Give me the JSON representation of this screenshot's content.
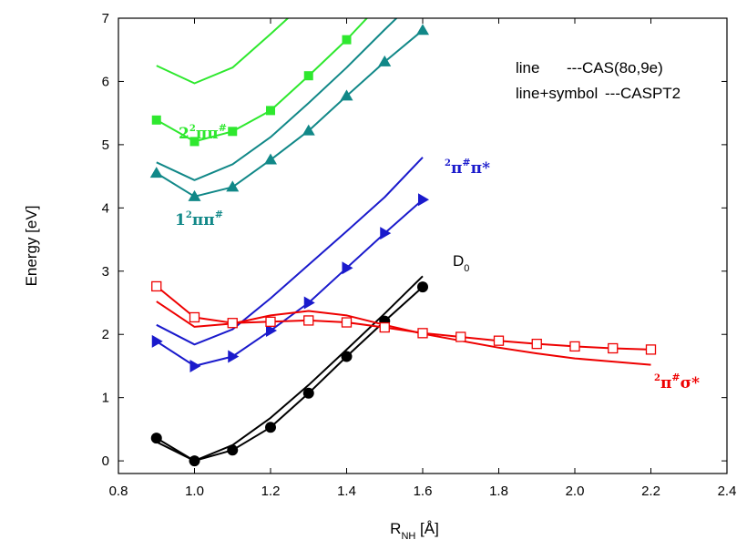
{
  "chart_data": {
    "type": "line",
    "xlabel": {
      "main": "R",
      "sub": "NH",
      "unit": " [Å]"
    },
    "ylabel": "Energy [eV]",
    "xlim": [
      0.8,
      2.4
    ],
    "ylim": [
      -0.2,
      7.0
    ],
    "x_ticks": [
      "0.8",
      "1.0",
      "1.2",
      "1.4",
      "1.6",
      "1.8",
      "2.0",
      "2.2",
      "2.4"
    ],
    "y_ticks": [
      "0",
      "1",
      "2",
      "3",
      "4",
      "5",
      "6",
      "7"
    ],
    "grid": false,
    "legend_note": {
      "line1": {
        "label": "line",
        "desc": "---CAS(8o,9e)"
      },
      "line2": {
        "label": "line+symbol",
        "desc": "---CASPT2"
      }
    },
    "state_labels": {
      "s2pipi": {
        "pre": "2",
        "sup": "2",
        "main": "ππ",
        "tail": "#"
      },
      "s1pipi": {
        "pre": "1",
        "sup": "2",
        "main": "ππ",
        "tail": "#"
      },
      "pipistar": {
        "sup": "2",
        "main": "π",
        "mid": "#",
        "tail": "π*"
      },
      "d0": {
        "main": "D",
        "sub": "0"
      },
      "pisigma": {
        "sup": "2",
        "main": "π",
        "mid": "#",
        "tail": "σ*"
      }
    },
    "series": [
      {
        "id": "s2_cas",
        "method": "CAS(8o,9e)",
        "color": "#2ee82e",
        "marker": "none",
        "x": [
          0.9,
          1.0,
          1.1,
          1.2,
          1.3
        ],
        "y": [
          6.25,
          5.97,
          6.22,
          6.75,
          7.3
        ]
      },
      {
        "id": "s2_pt2",
        "method": "CASPT2",
        "color": "#2ee82e",
        "marker": "square",
        "x": [
          0.9,
          1.0,
          1.1,
          1.2,
          1.3,
          1.4,
          1.5
        ],
        "y": [
          5.39,
          5.05,
          5.21,
          5.54,
          6.09,
          6.66,
          7.3
        ]
      },
      {
        "id": "s1_cas",
        "method": "CAS(8o,9e)",
        "color": "#118888",
        "marker": "none",
        "x": [
          0.9,
          1.0,
          1.1,
          1.2,
          1.3,
          1.4,
          1.5,
          1.6
        ],
        "y": [
          4.72,
          4.44,
          4.69,
          5.12,
          5.66,
          6.22,
          6.82,
          7.4
        ]
      },
      {
        "id": "s1_pt2",
        "method": "CASPT2",
        "color": "#118888",
        "marker": "triangle-up",
        "x": [
          0.9,
          1.0,
          1.1,
          1.2,
          1.3,
          1.4,
          1.5,
          1.6
        ],
        "y": [
          4.55,
          4.18,
          4.33,
          4.76,
          5.22,
          5.77,
          6.31,
          6.81
        ]
      },
      {
        "id": "pp_cas",
        "method": "CAS(8o,9e)",
        "color": "#1a1acc",
        "marker": "none",
        "x": [
          0.9,
          1.0,
          1.1,
          1.2,
          1.3,
          1.4,
          1.5,
          1.6
        ],
        "y": [
          2.15,
          1.84,
          2.08,
          2.57,
          3.1,
          3.63,
          4.17,
          4.8
        ]
      },
      {
        "id": "pp_pt2",
        "method": "CASPT2",
        "color": "#1a1acc",
        "marker": "triangle-right",
        "x": [
          0.9,
          1.0,
          1.1,
          1.2,
          1.3,
          1.4,
          1.5,
          1.6
        ],
        "y": [
          1.89,
          1.5,
          1.65,
          2.06,
          2.5,
          3.05,
          3.6,
          4.13
        ]
      },
      {
        "id": "d0_cas",
        "method": "CAS(8o,9e)",
        "color": "#000000",
        "marker": "none",
        "x": [
          0.9,
          1.0,
          1.1,
          1.2,
          1.3,
          1.4,
          1.5,
          1.6
        ],
        "y": [
          0.3,
          0.0,
          0.25,
          0.68,
          1.2,
          1.76,
          2.33,
          2.92
        ]
      },
      {
        "id": "d0_pt2",
        "method": "CASPT2",
        "color": "#000000",
        "marker": "circle",
        "x": [
          0.9,
          1.0,
          1.1,
          1.2,
          1.3,
          1.4,
          1.5,
          1.6
        ],
        "y": [
          0.36,
          0.0,
          0.17,
          0.53,
          1.07,
          1.65,
          2.21,
          2.75
        ]
      },
      {
        "id": "ps_cas",
        "method": "CAS(8o,9e)",
        "color": "#ee0000",
        "marker": "none",
        "x": [
          0.9,
          1.0,
          1.1,
          1.2,
          1.3,
          1.4,
          1.5,
          1.6,
          1.7,
          1.8,
          1.9,
          2.0,
          2.1,
          2.2
        ],
        "y": [
          2.52,
          2.12,
          2.17,
          2.3,
          2.37,
          2.3,
          2.15,
          2.01,
          1.9,
          1.79,
          1.7,
          1.62,
          1.57,
          1.52
        ]
      },
      {
        "id": "ps_pt2",
        "method": "CASPT2",
        "color": "#ee0000",
        "marker": "square-open",
        "x": [
          0.9,
          1.0,
          1.1,
          1.2,
          1.3,
          1.4,
          1.5,
          1.6,
          1.7,
          1.8,
          1.9,
          2.0,
          2.1,
          2.2
        ],
        "y": [
          2.76,
          2.27,
          2.18,
          2.2,
          2.22,
          2.19,
          2.11,
          2.02,
          1.96,
          1.9,
          1.85,
          1.81,
          1.78,
          1.76
        ]
      }
    ]
  }
}
